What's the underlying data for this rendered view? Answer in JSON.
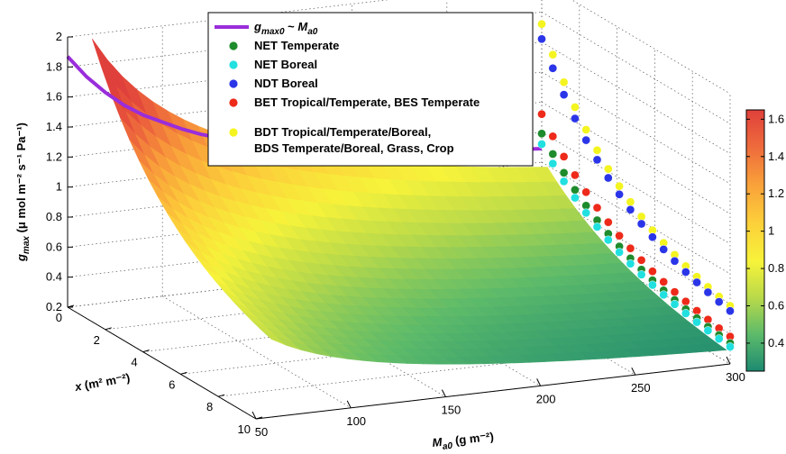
{
  "chart_data": {
    "type": "3d-surface-scatter",
    "zlabel": {
      "main": "g",
      "sub": "max",
      "units": "(μ mol m⁻² s⁻¹ Pa⁻¹)"
    },
    "xlabel": {
      "main": "M",
      "sub": "a0",
      "units": "(g m⁻²)"
    },
    "ylabel": {
      "main": "x",
      "units": "(m² m⁻²)"
    },
    "x_ticks": [
      "50",
      "100",
      "150",
      "200",
      "250",
      "300"
    ],
    "y_ticks": [
      "0",
      "2",
      "4",
      "6",
      "8",
      "10"
    ],
    "z_ticks": [
      "0.2",
      "0.4",
      "0.6",
      "0.8",
      "1",
      "1.2",
      "1.4",
      "1.6",
      "1.8",
      "2"
    ],
    "x_range": [
      50,
      300
    ],
    "y_range": [
      0,
      10
    ],
    "z_range": [
      0.2,
      2
    ],
    "colorbar": {
      "ticks": [
        "0.4",
        "0.6",
        "0.8",
        "1",
        "1.2",
        "1.4",
        "1.6"
      ],
      "range": [
        0.25,
        1.65
      ],
      "colors": [
        "#1d8a70",
        "#5cba6a",
        "#b8d94a",
        "#f7f33a",
        "#fccf3a",
        "#f9a23a",
        "#ee6a3c",
        "#e0403b"
      ]
    },
    "legend": {
      "placement": "top-center",
      "entries": [
        {
          "label_main": "g",
          "label_sub": "max0",
          "label_mid": " ~ ",
          "label_main2": "M",
          "label_sub2": "a0",
          "marker": "line",
          "color": "#9a2ddb"
        },
        {
          "label": "NET Temperate",
          "marker": "circle",
          "color": "#1e8b2c"
        },
        {
          "label": "NET Boreal",
          "marker": "circle",
          "color": "#22e0e0"
        },
        {
          "label": "NDT Boreal",
          "marker": "circle",
          "color": "#2b35e8"
        },
        {
          "label": "BET Tropical/Temperate, BES Temperate",
          "marker": "circle",
          "color": "#ee2a1a"
        },
        {
          "label": "BDT Tropical/Temperate/Boreal,",
          "label2": "BDS Temperate/Boreal, Grass, Crop",
          "marker": "circle",
          "color": "#f4f420"
        }
      ]
    },
    "curve_gmax0": {
      "x": [
        50,
        60,
        70,
        80,
        90,
        100,
        110,
        120,
        130,
        140,
        150,
        160,
        170,
        180,
        190,
        200,
        210,
        220,
        230,
        240,
        250,
        260,
        270,
        280,
        290,
        300
      ],
      "z": [
        1.87,
        1.72,
        1.6,
        1.5,
        1.42,
        1.36,
        1.3,
        1.25,
        1.21,
        1.17,
        1.14,
        1.11,
        1.09,
        1.06,
        1.04,
        1.02,
        1.0,
        0.99,
        0.97,
        0.96,
        0.95,
        0.93,
        0.92,
        0.91,
        0.9,
        0.89
      ]
    },
    "scatter_series": [
      {
        "name": "NDT Boreal",
        "color": "#2b35e8",
        "x": 300,
        "z0": 1.62
      },
      {
        "name": "BDT Tropical/Temperate/Boreal",
        "color": "#f4f420",
        "x": 300,
        "z0": 1.72
      },
      {
        "name": "BET Tropical/Temperate, BES Temperate",
        "color": "#ee2a1a",
        "x": 300,
        "z0": 1.12
      },
      {
        "name": "NET Temperate",
        "color": "#1e8b2c",
        "x": 300,
        "z0": 0.99
      },
      {
        "name": "NET Boreal",
        "color": "#22e0e0",
        "x": 300,
        "z0": 0.92
      }
    ],
    "grid": true
  }
}
